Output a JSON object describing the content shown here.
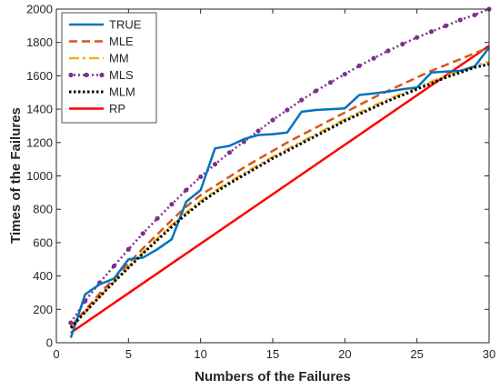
{
  "chart_data": {
    "type": "line",
    "xlabel": "Numbers of the Failures",
    "ylabel": "Times of the Failures",
    "xlim": [
      0,
      30
    ],
    "ylim": [
      0,
      2000
    ],
    "xticks": [
      0,
      5,
      10,
      15,
      20,
      25,
      30
    ],
    "yticks": [
      0,
      200,
      400,
      600,
      800,
      1000,
      1200,
      1400,
      1600,
      1800,
      2000
    ],
    "grid": false,
    "legend_position": "top-left",
    "series": [
      {
        "name": "TRUE",
        "color": "#0072BD",
        "style": "solid",
        "x": [
          1,
          2,
          3,
          4,
          5,
          6,
          7,
          8,
          9,
          10,
          11,
          12,
          13,
          14,
          15,
          16,
          17,
          18,
          19,
          20,
          21,
          22,
          23,
          24,
          25,
          26,
          27,
          28,
          29,
          30
        ],
        "y": [
          30,
          290,
          350,
          385,
          500,
          510,
          560,
          620,
          845,
          915,
          1165,
          1180,
          1220,
          1245,
          1250,
          1260,
          1385,
          1395,
          1400,
          1405,
          1485,
          1495,
          1505,
          1520,
          1530,
          1620,
          1625,
          1630,
          1655,
          1770
        ]
      },
      {
        "name": "MLE",
        "color": "#D95319",
        "style": "dashed",
        "x": [
          1,
          2,
          3,
          4,
          5,
          6,
          7,
          8,
          9,
          10,
          11,
          12,
          13,
          14,
          15,
          16,
          17,
          18,
          19,
          20,
          21,
          22,
          23,
          24,
          25,
          26,
          27,
          28,
          29,
          30
        ],
        "y": [
          95,
          195,
          295,
          385,
          475,
          565,
          650,
          735,
          815,
          885,
          940,
          995,
          1050,
          1100,
          1150,
          1200,
          1245,
          1290,
          1335,
          1380,
          1425,
          1470,
          1510,
          1550,
          1590,
          1630,
          1665,
          1700,
          1735,
          1770
        ]
      },
      {
        "name": "MM",
        "color": "#EDB120",
        "style": "dashdot",
        "x": [
          1,
          2,
          3,
          4,
          5,
          6,
          7,
          8,
          9,
          10,
          11,
          12,
          13,
          14,
          15,
          16,
          17,
          18,
          19,
          20,
          21,
          22,
          23,
          24,
          25,
          26,
          27,
          28,
          29,
          30
        ],
        "y": [
          85,
          180,
          275,
          365,
          455,
          540,
          625,
          705,
          780,
          850,
          910,
          965,
          1015,
          1065,
          1115,
          1160,
          1205,
          1250,
          1295,
          1340,
          1380,
          1420,
          1460,
          1495,
          1530,
          1565,
          1600,
          1630,
          1660,
          1685
        ]
      },
      {
        "name": "MLS",
        "color": "#7E2F8E",
        "style": "dotted-marker",
        "x": [
          1,
          2,
          3,
          4,
          5,
          6,
          7,
          8,
          9,
          10,
          11,
          12,
          13,
          14,
          15,
          16,
          17,
          18,
          19,
          20,
          21,
          22,
          23,
          24,
          25,
          26,
          27,
          28,
          29,
          30
        ],
        "y": [
          120,
          250,
          360,
          460,
          560,
          655,
          745,
          830,
          915,
          995,
          1070,
          1140,
          1205,
          1270,
          1335,
          1395,
          1455,
          1510,
          1560,
          1610,
          1660,
          1705,
          1750,
          1790,
          1830,
          1865,
          1900,
          1935,
          1965,
          2000
        ]
      },
      {
        "name": "MLM",
        "color": "#000000",
        "style": "dotted",
        "x": [
          1,
          2,
          3,
          4,
          5,
          6,
          7,
          8,
          9,
          10,
          11,
          12,
          13,
          14,
          15,
          16,
          17,
          18,
          19,
          20,
          21,
          22,
          23,
          24,
          25,
          26,
          27,
          28,
          29,
          30
        ],
        "y": [
          90,
          185,
          275,
          365,
          450,
          535,
          615,
          695,
          770,
          840,
          900,
          955,
          1005,
          1055,
          1105,
          1150,
          1195,
          1240,
          1285,
          1330,
          1370,
          1410,
          1450,
          1485,
          1520,
          1555,
          1590,
          1620,
          1650,
          1670
        ]
      },
      {
        "name": "RP",
        "color": "#FF0000",
        "style": "solid-thick",
        "x": [
          1,
          30
        ],
        "y": [
          60,
          1780
        ]
      }
    ]
  }
}
